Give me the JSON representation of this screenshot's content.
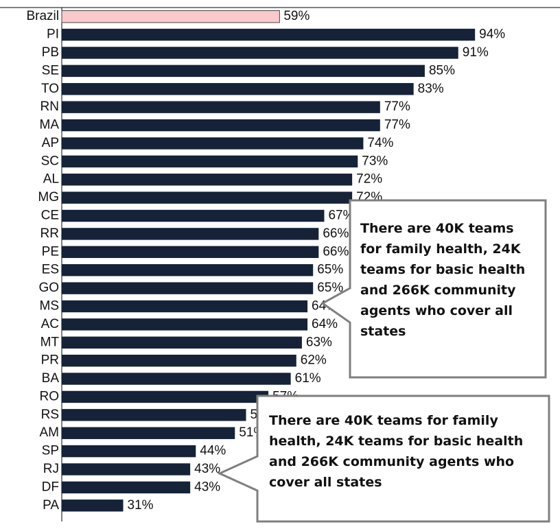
{
  "chart_data": {
    "type": "bar",
    "orientation": "horizontal",
    "categories": [
      "Brazil",
      "PI",
      "PB",
      "SE",
      "TO",
      "RN",
      "MA",
      "AP",
      "SC",
      "AL",
      "MG",
      "CE",
      "RR",
      "PE",
      "ES",
      "GO",
      "MS",
      "AC",
      "MT",
      "PR",
      "BA",
      "RO",
      "RS",
      "AM",
      "SP",
      "RJ",
      "DF",
      "PA"
    ],
    "values": [
      59,
      94,
      91,
      85,
      83,
      77,
      77,
      74,
      73,
      72,
      72,
      67,
      66,
      66,
      65,
      65,
      64,
      64,
      63,
      62,
      61,
      57,
      53,
      51,
      44,
      43,
      43,
      31
    ],
    "value_labels": [
      "59%",
      "94%",
      "91%",
      "85%",
      "83%",
      "77%",
      "77%",
      "74%",
      "73%",
      "72%",
      "72%",
      "67%",
      "66%",
      "66%",
      "65%",
      "65%",
      "64%",
      "64%",
      "63%",
      "62%",
      "61%",
      "57%",
      "53%",
      "51%",
      "44%",
      "43%",
      "43%",
      "31%"
    ],
    "colors": [
      "#f9c9cc",
      "#152238",
      "#152238",
      "#152238",
      "#152238",
      "#152238",
      "#152238",
      "#152238",
      "#152238",
      "#152238",
      "#152238",
      "#152238",
      "#152238",
      "#152238",
      "#152238",
      "#152238",
      "#152238",
      "#152238",
      "#152238",
      "#152238",
      "#152238",
      "#152238",
      "#152238",
      "#152238",
      "#152238",
      "#152238",
      "#152238",
      "#152238"
    ],
    "xlim": [
      20,
      100
    ],
    "annotations": [
      "There are 40K teams for family health, 24K teams for basic health and 266K community agents who cover all states",
      "There are 40K teams for family health, 24K teams for basic health and 266K community agents who cover all states"
    ]
  }
}
